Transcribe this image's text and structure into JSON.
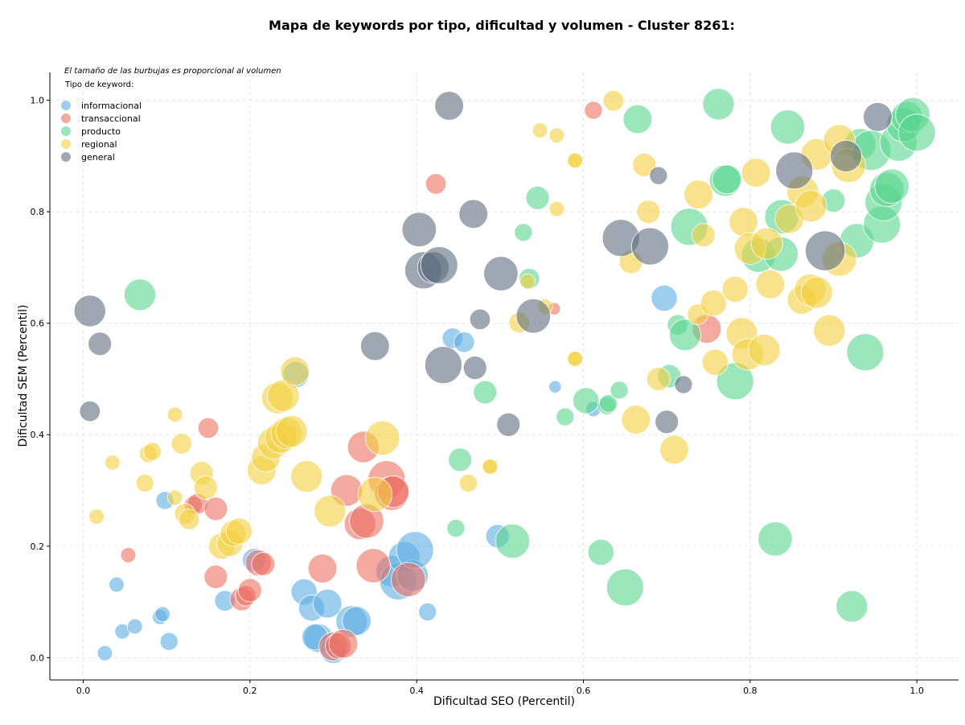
{
  "chart_data": {
    "type": "scatter",
    "title": "Mapa de keywords por tipo, dificultad y volumen - Cluster 8261:",
    "xlabel": "Dificultad SEO (Percentil)",
    "ylabel": "Dificultad SEM (Percentil)",
    "xlim": [
      -0.04,
      1.05
    ],
    "ylim": [
      -0.04,
      1.05
    ],
    "xticks": [
      "0.0",
      "0.2",
      "0.4",
      "0.6",
      "0.8",
      "1.0"
    ],
    "yticks": [
      "0.0",
      "0.2",
      "0.4",
      "0.6",
      "0.8",
      "1.0"
    ],
    "grid": true,
    "size_note": "El tamaño de las burbujas es proporcional al volumen",
    "legend_title": "Tipo de keyword:",
    "legend_position": "upper-left",
    "series": [
      {
        "name": "informacional",
        "color": "#5DADE2",
        "points": [
          [
            0.026,
            0.008,
            1
          ],
          [
            0.047,
            0.047,
            1
          ],
          [
            0.062,
            0.056,
            1
          ],
          [
            0.092,
            0.073,
            1
          ],
          [
            0.095,
            0.078,
            1
          ],
          [
            0.103,
            0.029,
            1.5
          ],
          [
            0.04,
            0.131,
            1
          ],
          [
            0.098,
            0.282,
            1.5
          ],
          [
            0.17,
            0.102,
            2
          ],
          [
            0.205,
            0.175,
            2.5
          ],
          [
            0.265,
            0.118,
            3
          ],
          [
            0.274,
            0.089,
            3
          ],
          [
            0.282,
            0.035,
            3.5
          ],
          [
            0.278,
            0.037,
            3
          ],
          [
            0.293,
            0.097,
            3.5
          ],
          [
            0.3,
            0.013,
            3
          ],
          [
            0.322,
            0.065,
            4
          ],
          [
            0.328,
            0.066,
            3.5
          ],
          [
            0.37,
            0.155,
            4
          ],
          [
            0.378,
            0.137,
            5
          ],
          [
            0.385,
            0.18,
            4
          ],
          [
            0.395,
            0.147,
            4
          ],
          [
            0.398,
            0.193,
            5
          ],
          [
            0.413,
            0.082,
            1.5
          ],
          [
            0.255,
            0.508,
            3
          ],
          [
            0.443,
            0.573,
            2
          ],
          [
            0.457,
            0.566,
            2
          ],
          [
            0.497,
            0.218,
            2.5
          ],
          [
            0.566,
            0.486,
            0.5
          ],
          [
            0.612,
            0.446,
            1
          ],
          [
            0.697,
            0.645,
            3
          ]
        ]
      },
      {
        "name": "transaccional",
        "color": "#EC7063",
        "points": [
          [
            0.054,
            0.184,
            1
          ],
          [
            0.132,
            0.274,
            1.5
          ],
          [
            0.137,
            0.276,
            2
          ],
          [
            0.15,
            0.412,
            2
          ],
          [
            0.159,
            0.145,
            2.5
          ],
          [
            0.159,
            0.267,
            2.5
          ],
          [
            0.19,
            0.105,
            2.5
          ],
          [
            0.195,
            0.111,
            2
          ],
          [
            0.2,
            0.121,
            2.5
          ],
          [
            0.21,
            0.17,
            3
          ],
          [
            0.216,
            0.168,
            2.5
          ],
          [
            0.287,
            0.16,
            3.5
          ],
          [
            0.3,
            0.02,
            3.5
          ],
          [
            0.306,
            0.021,
            3
          ],
          [
            0.312,
            0.025,
            3.5
          ],
          [
            0.316,
            0.3,
            4
          ],
          [
            0.332,
            0.24,
            4
          ],
          [
            0.336,
            0.378,
            4
          ],
          [
            0.34,
            0.245,
            4.5
          ],
          [
            0.348,
            0.165,
            4.5
          ],
          [
            0.364,
            0.32,
            5
          ],
          [
            0.37,
            0.295,
            4.5
          ],
          [
            0.372,
            0.298,
            4
          ],
          [
            0.39,
            0.14,
            4.5
          ],
          [
            0.423,
            0.85,
            2
          ],
          [
            0.612,
            0.982,
            1.5
          ],
          [
            0.565,
            0.626,
            0.5
          ],
          [
            0.748,
            0.59,
            3.5
          ]
        ]
      },
      {
        "name": "producto",
        "color": "#58D68D",
        "points": [
          [
            0.068,
            0.651,
            4
          ],
          [
            0.447,
            0.232,
            1.5
          ],
          [
            0.452,
            0.355,
            2.5
          ],
          [
            0.482,
            0.476,
            2.5
          ],
          [
            0.515,
            0.209,
            4.5
          ],
          [
            0.528,
            0.763,
            1.5
          ],
          [
            0.535,
            0.68,
            2
          ],
          [
            0.545,
            0.825,
            2.5
          ],
          [
            0.578,
            0.432,
            1.5
          ],
          [
            0.603,
            0.461,
            3
          ],
          [
            0.621,
            0.189,
            3
          ],
          [
            0.628,
            0.452,
            1.5
          ],
          [
            0.63,
            0.456,
            1.5
          ],
          [
            0.643,
            0.48,
            1.5
          ],
          [
            0.65,
            0.126,
            5
          ],
          [
            0.665,
            0.966,
            3.5
          ],
          [
            0.703,
            0.505,
            2.5
          ],
          [
            0.713,
            0.597,
            2
          ],
          [
            0.722,
            0.579,
            4
          ],
          [
            0.727,
            0.773,
            5
          ],
          [
            0.762,
            0.993,
            4
          ],
          [
            0.77,
            0.856,
            4
          ],
          [
            0.772,
            0.858,
            3.5
          ],
          [
            0.782,
            0.496,
            5
          ],
          [
            0.81,
            0.722,
            4.5
          ],
          [
            0.837,
            0.724,
            4.5
          ],
          [
            0.838,
            0.791,
            4.5
          ],
          [
            0.845,
            0.952,
            4.5
          ],
          [
            0.83,
            0.213,
            4.5
          ],
          [
            0.9,
            0.82,
            2.5
          ],
          [
            0.922,
            0.092,
            4
          ],
          [
            0.928,
            0.748,
            4.5
          ],
          [
            0.938,
            0.548,
            5
          ],
          [
            0.932,
            0.921,
            4
          ],
          [
            0.945,
            0.91,
            5.5
          ],
          [
            0.958,
            0.777,
            5
          ],
          [
            0.96,
            0.817,
            5
          ],
          [
            0.964,
            0.84,
            4.5
          ],
          [
            0.97,
            0.846,
            4.5
          ],
          [
            0.978,
            0.924,
            5
          ],
          [
            0.984,
            0.956,
            4.5
          ],
          [
            0.988,
            0.97,
            4
          ],
          [
            0.995,
            0.974,
            4.5
          ],
          [
            1.0,
            0.942,
            5
          ]
        ]
      },
      {
        "name": "regional",
        "color": "#F4D03F",
        "points": [
          [
            0.016,
            0.253,
            1
          ],
          [
            0.035,
            0.35,
            1
          ],
          [
            0.074,
            0.313,
            1.5
          ],
          [
            0.078,
            0.366,
            1.5
          ],
          [
            0.083,
            0.37,
            1.5
          ],
          [
            0.11,
            0.436,
            1
          ],
          [
            0.11,
            0.287,
            1
          ],
          [
            0.118,
            0.384,
            2
          ],
          [
            0.122,
            0.258,
            2
          ],
          [
            0.127,
            0.248,
            2
          ],
          [
            0.142,
            0.331,
            2.5
          ],
          [
            0.147,
            0.305,
            2.5
          ],
          [
            0.166,
            0.2,
            3
          ],
          [
            0.176,
            0.205,
            3
          ],
          [
            0.18,
            0.223,
            3
          ],
          [
            0.187,
            0.227,
            3
          ],
          [
            0.214,
            0.336,
            3.5
          ],
          [
            0.219,
            0.359,
            3.5
          ],
          [
            0.228,
            0.385,
            4
          ],
          [
            0.233,
            0.466,
            4
          ],
          [
            0.237,
            0.395,
            4
          ],
          [
            0.24,
            0.47,
            4
          ],
          [
            0.244,
            0.403,
            4
          ],
          [
            0.25,
            0.406,
            4
          ],
          [
            0.254,
            0.514,
            3.5
          ],
          [
            0.268,
            0.325,
            4
          ],
          [
            0.296,
            0.263,
            4
          ],
          [
            0.35,
            0.293,
            4.5
          ],
          [
            0.359,
            0.394,
            4.5
          ],
          [
            0.462,
            0.313,
            1.5
          ],
          [
            0.488,
            0.342,
            1
          ],
          [
            0.488,
            0.343,
            1
          ],
          [
            0.523,
            0.601,
            2
          ],
          [
            0.533,
            0.675,
            1
          ],
          [
            0.548,
            0.946,
            1
          ],
          [
            0.554,
            0.63,
            1
          ],
          [
            0.568,
            0.805,
            1
          ],
          [
            0.568,
            0.937,
            1
          ],
          [
            0.59,
            0.891,
            1
          ],
          [
            0.59,
            0.892,
            1
          ],
          [
            0.59,
            0.537,
            1
          ],
          [
            0.59,
            0.536,
            1
          ],
          [
            0.636,
            0.999,
            2
          ],
          [
            0.657,
            0.71,
            2.5
          ],
          [
            0.663,
            0.427,
            3.5
          ],
          [
            0.673,
            0.884,
            2.5
          ],
          [
            0.678,
            0.8,
            2.5
          ],
          [
            0.69,
            0.5,
            2.5
          ],
          [
            0.709,
            0.373,
            3.5
          ],
          [
            0.737,
            0.616,
            2
          ],
          [
            0.738,
            0.831,
            3.5
          ],
          [
            0.744,
            0.758,
            2.5
          ],
          [
            0.756,
            0.636,
            3
          ],
          [
            0.758,
            0.53,
            3
          ],
          [
            0.782,
            0.661,
            3
          ],
          [
            0.792,
            0.782,
            3.5
          ],
          [
            0.79,
            0.582,
            4
          ],
          [
            0.8,
            0.734,
            4
          ],
          [
            0.797,
            0.544,
            4
          ],
          [
            0.807,
            0.87,
            3.5
          ],
          [
            0.817,
            0.552,
            4
          ],
          [
            0.824,
            0.67,
            3.5
          ],
          [
            0.82,
            0.743,
            4
          ],
          [
            0.847,
            0.787,
            3.5
          ],
          [
            0.862,
            0.642,
            3.5
          ],
          [
            0.863,
            0.836,
            4
          ],
          [
            0.872,
            0.66,
            4
          ],
          [
            0.873,
            0.81,
            4
          ],
          [
            0.88,
            0.655,
            4
          ],
          [
            0.895,
            0.587,
            4
          ],
          [
            0.88,
            0.903,
            4
          ],
          [
            0.907,
            0.715,
            4.5
          ],
          [
            0.907,
            0.928,
            4
          ],
          [
            0.918,
            0.883,
            4.5
          ]
        ]
      },
      {
        "name": "general",
        "color": "#5D6D7E",
        "points": [
          [
            0.008,
            0.622,
            4
          ],
          [
            0.02,
            0.563,
            2.5
          ],
          [
            0.008,
            0.442,
            2
          ],
          [
            0.35,
            0.559,
            3.5
          ],
          [
            0.403,
            0.768,
            4.5
          ],
          [
            0.408,
            0.695,
            5
          ],
          [
            0.42,
            0.7,
            4
          ],
          [
            0.427,
            0.704,
            5
          ],
          [
            0.432,
            0.525,
            5
          ],
          [
            0.439,
            0.99,
            3.5
          ],
          [
            0.47,
            0.52,
            2.5
          ],
          [
            0.468,
            0.796,
            3.5
          ],
          [
            0.476,
            0.607,
            2
          ],
          [
            0.51,
            0.418,
            2.5
          ],
          [
            0.501,
            0.689,
            4.5
          ],
          [
            0.54,
            0.613,
            4.5
          ],
          [
            0.645,
            0.753,
            5
          ],
          [
            0.68,
            0.738,
            5
          ],
          [
            0.69,
            0.865,
            1.5
          ],
          [
            0.7,
            0.423,
            2.5
          ],
          [
            0.72,
            0.49,
            1.5
          ],
          [
            0.853,
            0.874,
            5
          ],
          [
            0.89,
            0.73,
            5.5
          ],
          [
            0.915,
            0.9,
            4
          ],
          [
            0.953,
            0.97,
            3.5
          ]
        ]
      }
    ]
  }
}
